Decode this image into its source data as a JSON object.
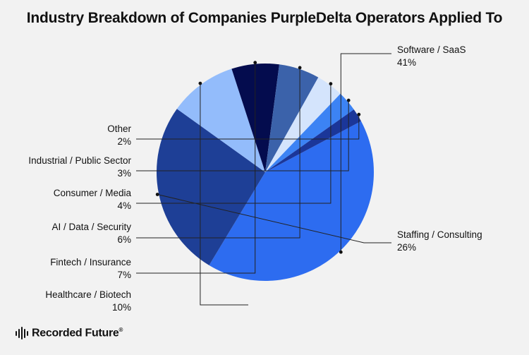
{
  "title": "Industry Breakdown of Companies PurpleDelta Operators Applied To",
  "logo": {
    "text": "Recorded Future",
    "mark": "®"
  },
  "chart_data": {
    "type": "pie",
    "title": "Industry Breakdown of Companies PurpleDelta Operators Applied To",
    "unit": "%",
    "slices": [
      {
        "name": "Software / SaaS",
        "value": 41,
        "label": "41%",
        "color": "#2d6cf0"
      },
      {
        "name": "Staffing / Consulting",
        "value": 26,
        "label": "26%",
        "color": "#1e3f96"
      },
      {
        "name": "Healthcare / Biotech",
        "value": 10,
        "label": "10%",
        "color": "#93bcfb"
      },
      {
        "name": "Fintech / Insurance",
        "value": 7,
        "label": "7%",
        "color": "#040c4e"
      },
      {
        "name": "AI / Data / Security",
        "value": 6,
        "label": "6%",
        "color": "#3b62aa"
      },
      {
        "name": "Consumer / Media",
        "value": 4,
        "label": "4%",
        "color": "#d4e4fc"
      },
      {
        "name": "Industrial / Public Sector",
        "value": 3,
        "label": "3%",
        "color": "#3c83f4"
      },
      {
        "name": "Other",
        "value": 2,
        "label": "2%",
        "color": "#1b3699"
      }
    ]
  }
}
